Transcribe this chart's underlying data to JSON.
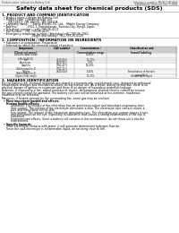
{
  "title": "Safety data sheet for chemical products (SDS)",
  "header_left": "Product name: Lithium Ion Battery Cell",
  "header_right_line1": "Substance number: MS4C-P-AC48-B",
  "header_right_line2": "Established / Revision: Dec.7.2016",
  "section1_title": "1. PRODUCT AND COMPANY IDENTIFICATION",
  "section1_lines": [
    "  • Product name: Lithium Ion Battery Cell",
    "  • Product code: Cylindrical-type cell",
    "       IXR 18650J, IXR 18650L, IXR 18650A",
    "  • Company name:     Sanyo Electric Co., Ltd.,  Mobile Energy Company",
    "  • Address:           2021-1  Kamitakanori, Sumoto-City, Hyogo, Japan",
    "  • Telephone number:   +81-799-26-4111",
    "  • Fax number:  +81-799-26-4120",
    "  • Emergency telephone number: (Weekday) +81-799-26-2062",
    "                                  (Night and holiday) +81-799-26-4120"
  ],
  "section2_title": "2. COMPOSITION / INFORMATION ON INGREDIENTS",
  "section2_sub": "  • Substance or preparation: Preparation",
  "section2_sub2": "  • Information about the chemical nature of product:",
  "table_headers": [
    "Component\n(Chemical name)",
    "CAS number",
    "Concentration /\nConcentration range",
    "Classification and\nhazard labeling"
  ],
  "table_rows": [
    [
      "Lithium cobalt oxide\n(LiMn/CoNiO2)",
      "-",
      "30-60%",
      "-"
    ],
    [
      "Iron",
      "7439-89-6",
      "10-20%",
      "-"
    ],
    [
      "Aluminum",
      "7429-90-5",
      "2-5%",
      "-"
    ],
    [
      "Graphite\n(Akita graphite-1)\n(Akita graphite-2)",
      "7782-42-5\n7782-42-5",
      "10-25%",
      "-"
    ],
    [
      "Copper",
      "7440-50-8",
      "5-15%",
      "Sensitization of the skin\ngroup No.2"
    ],
    [
      "Organic electrolyte",
      "-",
      "10-20%",
      "Inflammable liquid"
    ]
  ],
  "section3_title": "3. HAZARDS IDENTIFICATION",
  "section3_lines": [
    "For the battery cell, chemical materials are stored in a hermetically sealed metal case, designed to withstand",
    "temperature changes and mechanical shocks during normal use. As a result, during normal use, there is no",
    "physical danger of ignition or expansion and there is no danger of hazardous materials leakage.",
    "",
    "However, if exposed to a fire, added mechanical shocks, decomposed, shorted electric current by misuse,",
    "the gas release cannot be operated. The battery cell case will be breached at fire-extreme, hazardous",
    "materials may be released.",
    "",
    "Moreover, if heated strongly by the surrounding fire, some gas may be emitted.",
    "",
    "  • Most important hazard and effects:",
    "     Human health effects:",
    "          Inhalation: The release of the electrolyte has an anesthesia action and stimulates respiratory tract.",
    "          Skin contact: The release of the electrolyte stimulates a skin. The electrolyte skin contact causes a",
    "          sore and stimulation on the skin.",
    "          Eye contact: The release of the electrolyte stimulates eyes. The electrolyte eye contact causes a sore",
    "          and stimulation on the eye. Especially, a substance that causes a strong inflammation of the eye is",
    "          contained.",
    "          Environmental effects: Since a battery cell remains in the environment, do not throw out it into the",
    "          environment.",
    "",
    "  • Specific hazards:",
    "     If the electrolyte contacts with water, it will generate detrimental hydrogen fluoride.",
    "     Since the said electrolyte is inflammable liquid, do not bring close to fire."
  ],
  "bg_color": "#ffffff",
  "text_color": "#000000",
  "line_color": "#aaaaaa",
  "table_header_bg": "#cccccc",
  "title_fontsize": 4.5,
  "header_fontsize": 2.0,
  "body_fontsize": 2.2,
  "section_fontsize": 2.8
}
